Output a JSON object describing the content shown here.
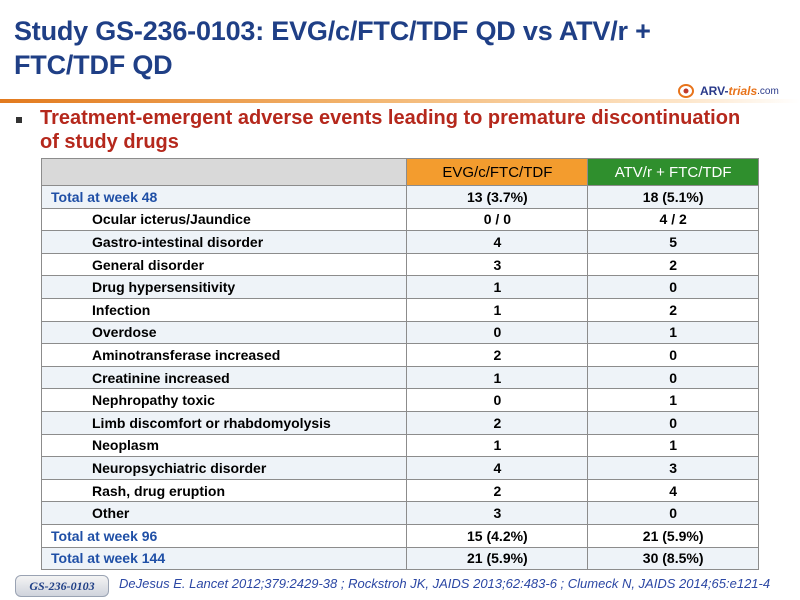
{
  "title": "Study GS-236-0103: EVG/c/FTC/TDF QD vs ATV/r + FTC/TDF QD",
  "logo": {
    "part1": "ARV-",
    "part2": "trials",
    "part3": ".com"
  },
  "subtitle": "Treatment-emergent adverse events leading to premature discontinuation of study drugs",
  "table": {
    "headers": [
      "",
      "EVG/c/FTC/TDF",
      "ATV/r + FTC/TDF"
    ],
    "rows": [
      {
        "label": "Total at week 48",
        "evg": "13 (3.7%)",
        "atv": "18 (5.1%)"
      },
      {
        "label": "Ocular icterus/Jaundice",
        "evg": "0 / 0",
        "atv": "4 / 2"
      },
      {
        "label": "Gastro-intestinal disorder",
        "evg": "4",
        "atv": "5"
      },
      {
        "label": "General disorder",
        "evg": "3",
        "atv": "2"
      },
      {
        "label": "Drug hypersensitivity",
        "evg": "1",
        "atv": "0"
      },
      {
        "label": "Infection",
        "evg": "1",
        "atv": "2"
      },
      {
        "label": "Overdose",
        "evg": "0",
        "atv": "1"
      },
      {
        "label": "Aminotransferase increased",
        "evg": "2",
        "atv": "0"
      },
      {
        "label": "Creatinine increased",
        "evg": "1",
        "atv": "0"
      },
      {
        "label": "Nephropathy toxic",
        "evg": "0",
        "atv": "1"
      },
      {
        "label": "Limb discomfort or rhabdomyolysis",
        "evg": "2",
        "atv": "0"
      },
      {
        "label": "Neoplasm",
        "evg": "1",
        "atv": "1"
      },
      {
        "label": "Neuropsychiatric disorder",
        "evg": "4",
        "atv": "3"
      },
      {
        "label": "Rash, drug eruption",
        "evg": "2",
        "atv": "4"
      },
      {
        "label": "Other",
        "evg": "3",
        "atv": "0"
      },
      {
        "label": "Total at week 96",
        "evg": "15 (4.2%)",
        "atv": "21 (5.9%)"
      },
      {
        "label": "Total at week 144",
        "evg": "21 (5.9%)",
        "atv": "30 (8.5%)"
      }
    ]
  },
  "footer": {
    "badge": "GS-236-0103",
    "citation": "DeJesus E. Lancet 2012;379:2429-38 ; Rockstroh JK, JAIDS 2013;62:483-6 ; Clumeck N, JAIDS 2014;65:e121-4"
  },
  "colors": {
    "title": "#1f3f86",
    "subtitle": "#b5281c",
    "evg_header": "#f39c2e",
    "atv_header": "#2f8f2d",
    "total_label": "#1f4fa6"
  }
}
